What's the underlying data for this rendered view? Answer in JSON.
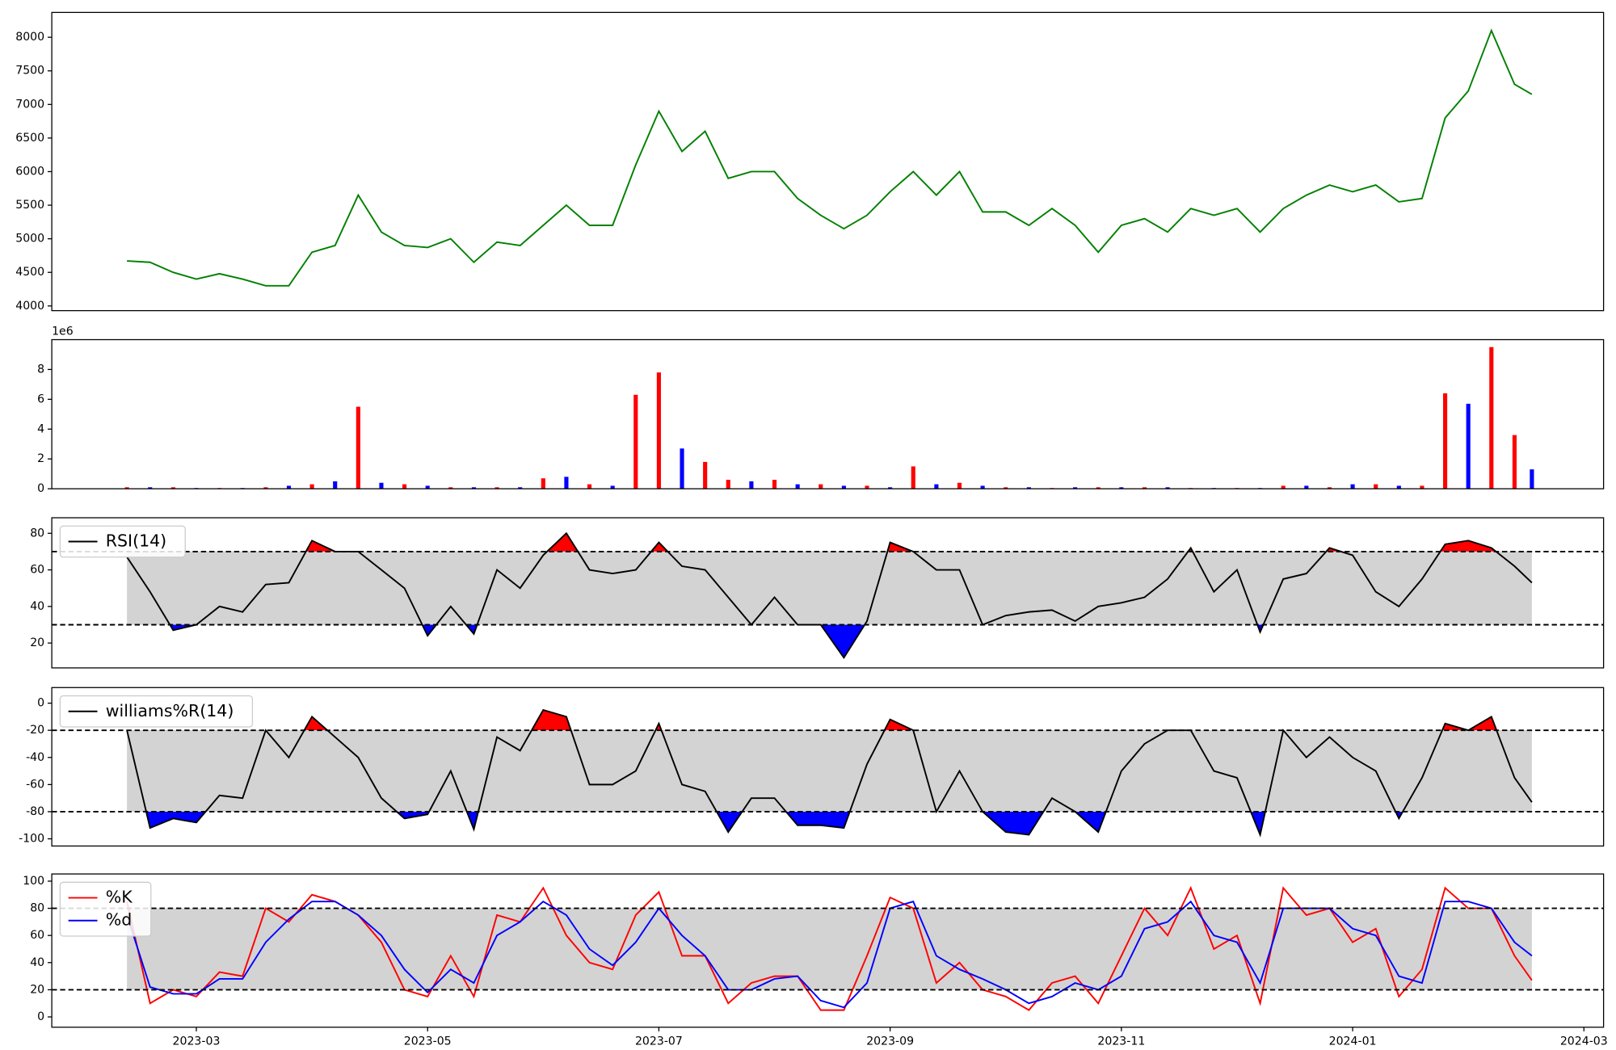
{
  "chart_data": [
    {
      "type": "line",
      "color": "green",
      "x": [
        1.4,
        1.6,
        1.8,
        2,
        2.2,
        2.4,
        2.6,
        2.8,
        3,
        3.2,
        3.4,
        3.6,
        3.8,
        4,
        4.2,
        4.4,
        4.6,
        4.8,
        5,
        5.2,
        5.4,
        5.6,
        5.8,
        6,
        6.2,
        6.4,
        6.6,
        6.8,
        7,
        7.2,
        7.4,
        7.6,
        7.8,
        8,
        8.2,
        8.4,
        8.6,
        8.8,
        9,
        9.2,
        9.4,
        9.6,
        9.8,
        10,
        10.2,
        10.4,
        10.6,
        10.8,
        11,
        11.2,
        11.4,
        11.6,
        11.8,
        12,
        12.2,
        12.4,
        12.6,
        12.8,
        13,
        13.2,
        13.4,
        13.55
      ],
      "values": [
        4670,
        4650,
        4500,
        4400,
        4480,
        4400,
        4300,
        4300,
        4800,
        4900,
        5650,
        5100,
        4900,
        4870,
        5000,
        4650,
        4950,
        4900,
        5200,
        5500,
        5200,
        5200,
        6100,
        6900,
        6300,
        6600,
        5900,
        6000,
        6000,
        5600,
        5350,
        5150,
        5350,
        5700,
        6000,
        5650,
        6000,
        5400,
        5400,
        5200,
        5450,
        5200,
        4800,
        5200,
        5300,
        5100,
        5450,
        5350,
        5450,
        5100,
        5450,
        5650,
        5800,
        5700,
        5800,
        5550,
        5600,
        6800,
        7200,
        8100,
        7300,
        7150
      ],
      "xlim": [
        0.75,
        14.17
      ],
      "ylim": [
        3930,
        8370
      ],
      "yticks": [
        4000,
        4500,
        5000,
        5500,
        6000,
        6500,
        7000,
        7500,
        8000
      ]
    },
    {
      "type": "bar",
      "offset_label": "1e6",
      "x": [
        1.4,
        1.6,
        1.8,
        2,
        2.2,
        2.4,
        2.6,
        2.8,
        3,
        3.2,
        3.4,
        3.6,
        3.8,
        4,
        4.2,
        4.4,
        4.6,
        4.8,
        5,
        5.2,
        5.4,
        5.6,
        5.8,
        6,
        6.2,
        6.4,
        6.6,
        6.8,
        7,
        7.2,
        7.4,
        7.6,
        7.8,
        8,
        8.2,
        8.4,
        8.6,
        8.8,
        9,
        9.2,
        9.4,
        9.6,
        9.8,
        10,
        10.2,
        10.4,
        10.6,
        10.8,
        11,
        11.2,
        11.4,
        11.6,
        11.8,
        12,
        12.2,
        12.4,
        12.6,
        12.8,
        13,
        13.2,
        13.4,
        13.55
      ],
      "values": [
        0.1,
        0.1,
        0.1,
        0.05,
        0.05,
        0.05,
        0.1,
        0.2,
        0.3,
        0.5,
        5.5,
        0.4,
        0.3,
        0.2,
        0.1,
        0.1,
        0.1,
        0.1,
        0.7,
        0.8,
        0.3,
        0.2,
        6.3,
        7.8,
        2.7,
        1.8,
        0.6,
        0.5,
        0.6,
        0.3,
        0.3,
        0.2,
        0.2,
        0.1,
        1.5,
        0.3,
        0.4,
        0.2,
        0.1,
        0.1,
        0.05,
        0.1,
        0.1,
        0.1,
        0.1,
        0.1,
        0.05,
        0.05,
        0.05,
        0.05,
        0.2,
        0.2,
        0.1,
        0.3,
        0.3,
        0.2,
        0.2,
        6.4,
        5.7,
        9.5,
        3.6,
        1.3
      ],
      "bar_colors": [
        "red",
        "blue",
        "red",
        "blue",
        "red",
        "blue",
        "red",
        "blue",
        "red",
        "blue",
        "red",
        "blue",
        "red",
        "blue",
        "red",
        "blue",
        "red",
        "blue",
        "red",
        "blue",
        "red",
        "blue",
        "red",
        "red",
        "blue",
        "red",
        "red",
        "blue",
        "red",
        "blue",
        "red",
        "blue",
        "red",
        "blue",
        "red",
        "blue",
        "red",
        "blue",
        "red",
        "blue",
        "red",
        "blue",
        "red",
        "blue",
        "red",
        "blue",
        "red",
        "blue",
        "red",
        "blue",
        "red",
        "blue",
        "red",
        "blue",
        "red",
        "blue",
        "red",
        "red",
        "blue",
        "red",
        "red",
        "blue"
      ],
      "xlim": [
        0.75,
        14.17
      ],
      "ylim": [
        0,
        10
      ],
      "yticks": [
        0,
        2,
        4,
        6,
        8
      ]
    },
    {
      "type": "line",
      "legend": "upper left",
      "x": [
        1.4,
        1.6,
        1.8,
        2,
        2.2,
        2.4,
        2.6,
        2.8,
        3,
        3.2,
        3.4,
        3.6,
        3.8,
        4,
        4.2,
        4.4,
        4.6,
        4.8,
        5,
        5.2,
        5.4,
        5.6,
        5.8,
        6,
        6.2,
        6.4,
        6.6,
        6.8,
        7,
        7.2,
        7.4,
        7.6,
        7.8,
        8,
        8.2,
        8.4,
        8.6,
        8.8,
        9,
        9.2,
        9.4,
        9.6,
        9.8,
        10,
        10.2,
        10.4,
        10.6,
        10.8,
        11,
        11.2,
        11.4,
        11.6,
        11.8,
        12,
        12.2,
        12.4,
        12.6,
        12.8,
        13,
        13.2,
        13.4,
        13.55
      ],
      "series": [
        {
          "name": "RSI(14)",
          "color": "black",
          "values": [
            67,
            48,
            27,
            30,
            40,
            37,
            52,
            53,
            76,
            70,
            70,
            60,
            50,
            24,
            40,
            25,
            60,
            50,
            68,
            80,
            60,
            58,
            60,
            75,
            62,
            60,
            45,
            30,
            45,
            30,
            30,
            12,
            32,
            75,
            70,
            60,
            60,
            30,
            35,
            37,
            38,
            32,
            40,
            42,
            45,
            55,
            72,
            48,
            60,
            26,
            55,
            58,
            72,
            68,
            48,
            40,
            55,
            74,
            76,
            72,
            62,
            53
          ]
        }
      ],
      "band": [
        30,
        70
      ],
      "band_color": "lightgray",
      "above_color": "red",
      "below_color": "blue",
      "xlim": [
        0.75,
        14.17
      ],
      "ylim": [
        6.4,
        88.5
      ],
      "yticks": [
        20,
        40,
        60,
        80
      ]
    },
    {
      "type": "line",
      "legend": "upper left",
      "x": [
        1.4,
        1.6,
        1.8,
        2,
        2.2,
        2.4,
        2.6,
        2.8,
        3,
        3.2,
        3.4,
        3.6,
        3.8,
        4,
        4.2,
        4.4,
        4.6,
        4.8,
        5,
        5.2,
        5.4,
        5.6,
        5.8,
        6,
        6.2,
        6.4,
        6.6,
        6.8,
        7,
        7.2,
        7.4,
        7.6,
        7.8,
        8,
        8.2,
        8.4,
        8.6,
        8.8,
        9,
        9.2,
        9.4,
        9.6,
        9.8,
        10,
        10.2,
        10.4,
        10.6,
        10.8,
        11,
        11.2,
        11.4,
        11.6,
        11.8,
        12,
        12.2,
        12.4,
        12.6,
        12.8,
        13,
        13.2,
        13.4,
        13.55
      ],
      "series": [
        {
          "name": "williams%R(14)",
          "color": "black",
          "values": [
            -20,
            -92,
            -85,
            -88,
            -68,
            -70,
            -20,
            -40,
            -10,
            -25,
            -40,
            -70,
            -85,
            -82,
            -50,
            -93,
            -25,
            -35,
            -5,
            -10,
            -60,
            -60,
            -50,
            -15,
            -60,
            -65,
            -95,
            -70,
            -70,
            -90,
            -90,
            -92,
            -45,
            -12,
            -20,
            -80,
            -50,
            -80,
            -95,
            -97,
            -70,
            -80,
            -95,
            -50,
            -30,
            -20,
            -20,
            -50,
            -55,
            -97,
            -20,
            -40,
            -25,
            -40,
            -50,
            -85,
            -55,
            -15,
            -20,
            -10,
            -55,
            -73
          ]
        }
      ],
      "band": [
        -80,
        -20
      ],
      "band_color": "lightgray",
      "above_color": "red",
      "below_color": "blue",
      "xlim": [
        0.75,
        14.17
      ],
      "ylim": [
        -105.3,
        11.5
      ],
      "yticks": [
        -100,
        -80,
        -60,
        -40,
        -20,
        0
      ]
    },
    {
      "type": "line",
      "legend": "upper left",
      "x": [
        1.4,
        1.6,
        1.8,
        2,
        2.2,
        2.4,
        2.6,
        2.8,
        3,
        3.2,
        3.4,
        3.6,
        3.8,
        4,
        4.2,
        4.4,
        4.6,
        4.8,
        5,
        5.2,
        5.4,
        5.6,
        5.8,
        6,
        6.2,
        6.4,
        6.6,
        6.8,
        7,
        7.2,
        7.4,
        7.6,
        7.8,
        8,
        8.2,
        8.4,
        8.6,
        8.8,
        9,
        9.2,
        9.4,
        9.6,
        9.8,
        10,
        10.2,
        10.4,
        10.6,
        10.8,
        11,
        11.2,
        11.4,
        11.6,
        11.8,
        12,
        12.2,
        12.4,
        12.6,
        12.8,
        13,
        13.2,
        13.4,
        13.55
      ],
      "series": [
        {
          "name": "%K",
          "color": "red",
          "values": [
            85,
            10,
            20,
            15,
            33,
            30,
            80,
            70,
            90,
            85,
            75,
            55,
            20,
            15,
            45,
            15,
            75,
            70,
            95,
            60,
            40,
            35,
            75,
            92,
            45,
            45,
            10,
            25,
            30,
            30,
            5,
            5,
            45,
            88,
            80,
            25,
            40,
            20,
            15,
            5,
            25,
            30,
            10,
            45,
            80,
            60,
            95,
            50,
            60,
            10,
            95,
            75,
            80,
            55,
            65,
            15,
            35,
            95,
            80,
            80,
            45,
            27
          ]
        },
        {
          "name": "%d",
          "color": "blue",
          "values": [
            75,
            22,
            17,
            17,
            28,
            28,
            55,
            72,
            85,
            85,
            75,
            60,
            35,
            18,
            35,
            25,
            60,
            70,
            85,
            75,
            50,
            38,
            55,
            80,
            60,
            45,
            20,
            20,
            28,
            30,
            12,
            7,
            25,
            80,
            85,
            45,
            35,
            28,
            20,
            10,
            15,
            25,
            20,
            30,
            65,
            70,
            85,
            60,
            55,
            25,
            80,
            80,
            80,
            65,
            60,
            30,
            25,
            85,
            85,
            80,
            55,
            45
          ]
        }
      ],
      "band": [
        20,
        80
      ],
      "band_color": "lightgray",
      "xlim": [
        0.75,
        14.17
      ],
      "ylim": [
        -7.6,
        105.3
      ],
      "yticks": [
        0,
        20,
        40,
        60,
        80,
        100
      ],
      "xticks": [
        {
          "value": 2,
          "label": "2023-03"
        },
        {
          "value": 4,
          "label": "2023-05"
        },
        {
          "value": 6,
          "label": "2023-07"
        },
        {
          "value": 8,
          "label": "2023-09"
        },
        {
          "value": 10,
          "label": "2023-11"
        },
        {
          "value": 12,
          "label": "2024-01"
        },
        {
          "value": 14,
          "label": "2024-03"
        }
      ]
    }
  ]
}
